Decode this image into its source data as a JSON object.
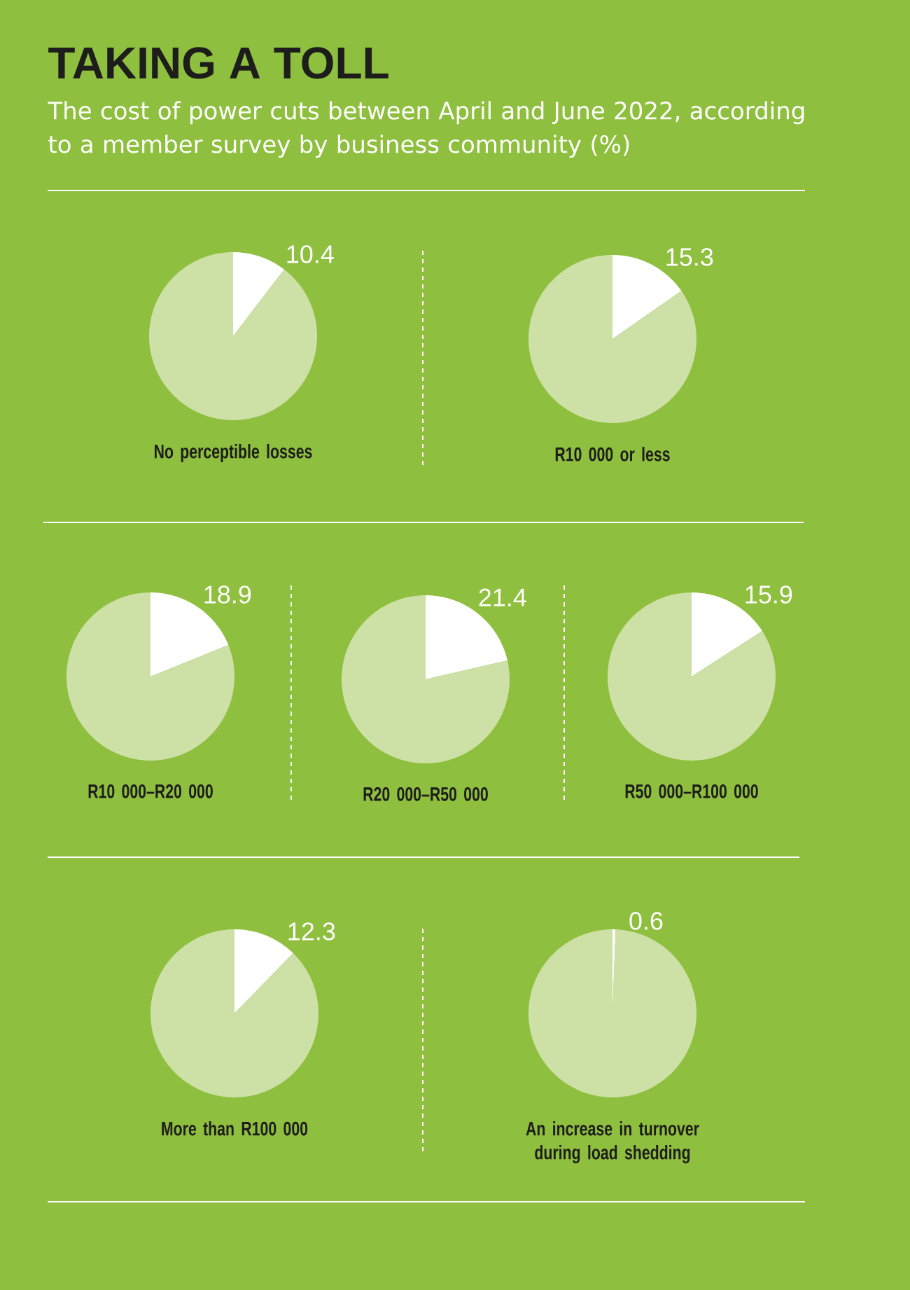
{
  "chart_data": [
    {
      "type": "other",
      "title": "TAKING A TOLL",
      "subtitle": "The cost of power cuts between April and June 2022, according to a member survey by business community (%)"
    },
    {
      "type": "pie",
      "title": "No perceptible losses",
      "categories": [
        null,
        null
      ],
      "values": [
        10.4,
        89.6
      ],
      "colors": [
        "#ffffff",
        "#cde0a6"
      ],
      "value_labels": [
        "10.4",
        null
      ]
    },
    {
      "type": "pie",
      "title": "R10 000 or less",
      "categories": [
        null,
        null
      ],
      "values": [
        15.3,
        84.7
      ],
      "colors": [
        "#ffffff",
        "#cde0a6"
      ],
      "value_labels": [
        "15.3",
        null
      ]
    },
    {
      "type": "pie",
      "title": "R10 000–R20 000",
      "categories": [
        null,
        null
      ],
      "values": [
        18.9,
        81.1
      ],
      "colors": [
        "#ffffff",
        "#cde0a6"
      ],
      "value_labels": [
        "18.9",
        null
      ]
    },
    {
      "type": "pie",
      "title": "R20 000–R50 000",
      "categories": [
        null,
        null
      ],
      "values": [
        21.4,
        78.6
      ],
      "colors": [
        "#ffffff",
        "#cde0a6"
      ],
      "value_labels": [
        "21.4",
        null
      ]
    },
    {
      "type": "pie",
      "title": "R50 000–R100 000",
      "categories": [
        null,
        null
      ],
      "values": [
        15.9,
        84.1
      ],
      "colors": [
        "#ffffff",
        "#cde0a6"
      ],
      "value_labels": [
        "15.9",
        null
      ]
    },
    {
      "type": "pie",
      "title": "More than R100 000",
      "categories": [
        null,
        null
      ],
      "values": [
        12.3,
        87.7
      ],
      "colors": [
        "#ffffff",
        "#cde0a6"
      ],
      "value_labels": [
        "12.3",
        null
      ]
    },
    {
      "type": "pie",
      "title": "An increase in turnover during load shedding",
      "categories": [
        null,
        null
      ],
      "values": [
        0.6,
        99.4
      ],
      "colors": [
        "#ffffff",
        "#cde0a6"
      ],
      "value_labels": [
        "0.6",
        null
      ]
    }
  ]
}
